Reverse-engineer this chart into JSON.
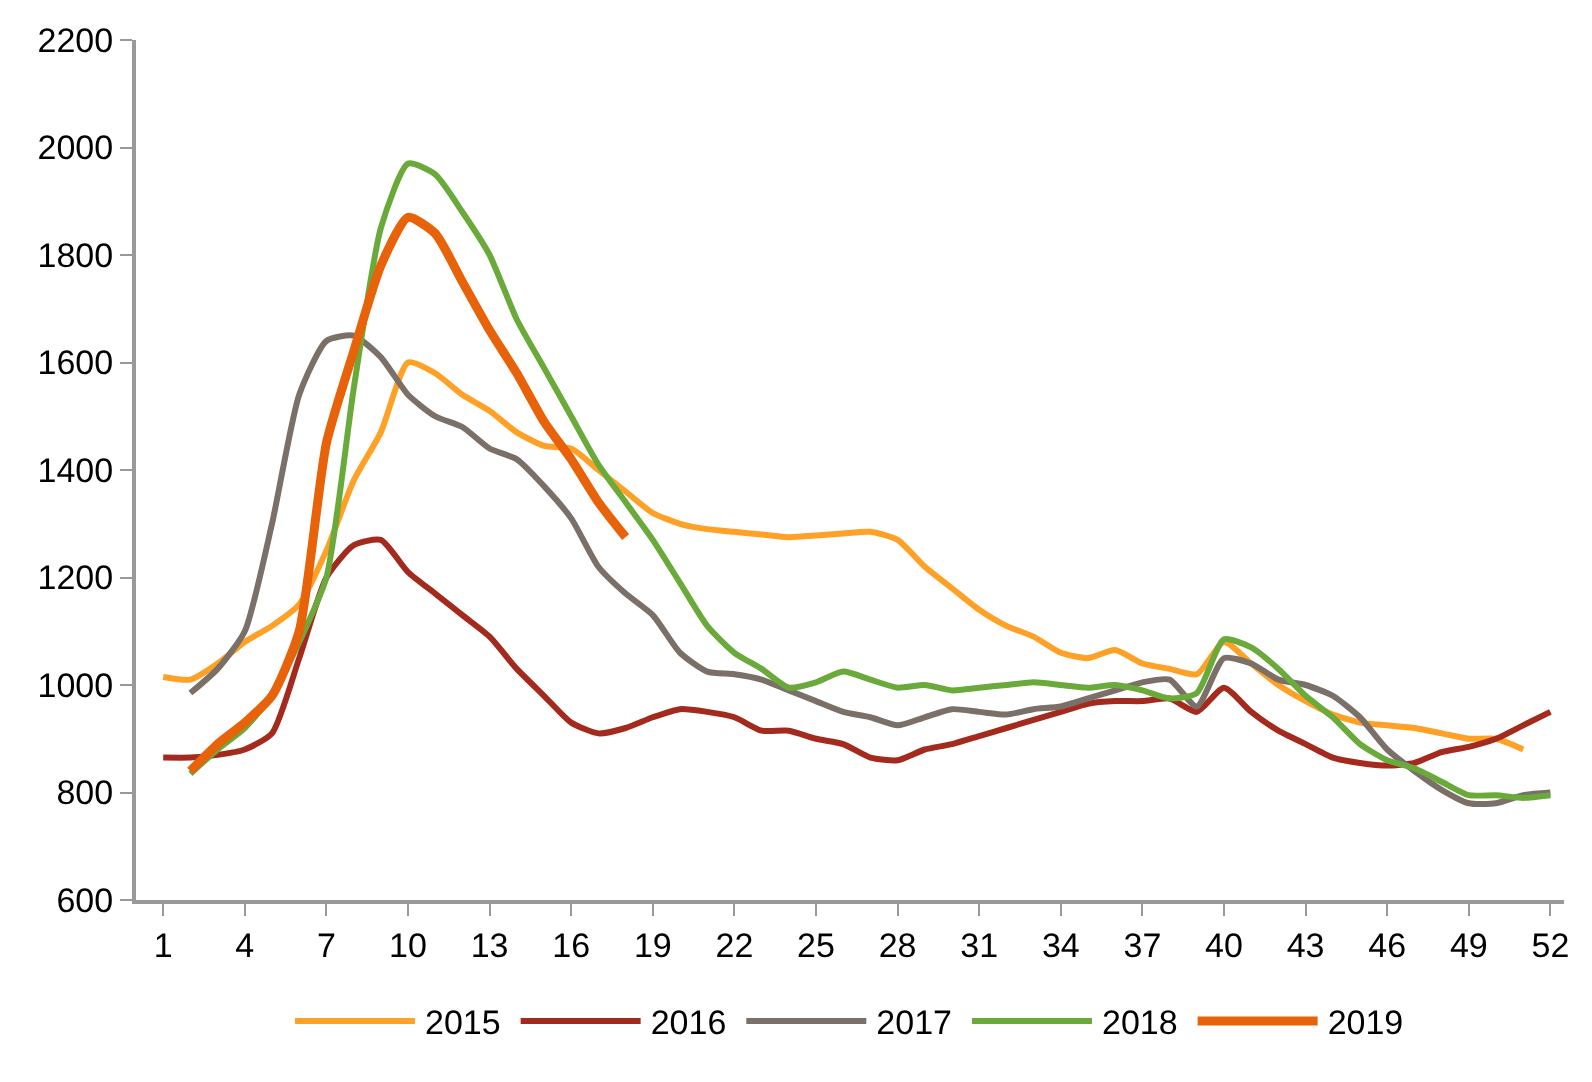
{
  "chart_data": {
    "type": "line",
    "x": [
      1,
      2,
      3,
      4,
      5,
      6,
      7,
      8,
      9,
      10,
      11,
      12,
      13,
      14,
      15,
      16,
      17,
      18,
      19,
      20,
      21,
      22,
      23,
      24,
      25,
      26,
      27,
      28,
      29,
      30,
      31,
      32,
      33,
      34,
      35,
      36,
      37,
      38,
      39,
      40,
      41,
      42,
      43,
      44,
      45,
      46,
      47,
      48,
      49,
      50,
      51,
      52
    ],
    "series": [
      {
        "name": "2015",
        "color": "#ffa126",
        "values": [
          1015,
          1010,
          1040,
          1080,
          1110,
          1150,
          1250,
          1380,
          1470,
          1600,
          1580,
          1540,
          1510,
          1470,
          1445,
          1440,
          1400,
          1360,
          1320,
          1300,
          1290,
          1285,
          1280,
          1275,
          1278,
          1282,
          1285,
          1270,
          1220,
          1180,
          1140,
          1110,
          1090,
          1060,
          1050,
          1065,
          1040,
          1030,
          1020,
          1080,
          1040,
          1000,
          970,
          945,
          930,
          925,
          920,
          910,
          900,
          900,
          880,
          null
        ]
      },
      {
        "name": "2016",
        "color": "#a52a1e",
        "values": [
          865,
          865,
          870,
          880,
          910,
          1050,
          1200,
          1260,
          1270,
          1210,
          1170,
          1130,
          1090,
          1030,
          980,
          930,
          910,
          920,
          940,
          955,
          950,
          940,
          915,
          915,
          900,
          890,
          865,
          860,
          880,
          890,
          905,
          920,
          935,
          950,
          965,
          970,
          970,
          975,
          950,
          995,
          950,
          915,
          890,
          865,
          855,
          850,
          855,
          875,
          885,
          900,
          925,
          950
        ]
      },
      {
        "name": "2017",
        "color": "#7a7067",
        "values": [
          null,
          985,
          1030,
          1100,
          1300,
          1540,
          1640,
          1650,
          1610,
          1540,
          1500,
          1480,
          1440,
          1420,
          1370,
          1310,
          1220,
          1170,
          1130,
          1060,
          1025,
          1020,
          1010,
          990,
          970,
          950,
          940,
          925,
          940,
          955,
          950,
          945,
          955,
          960,
          975,
          990,
          1005,
          1010,
          960,
          1050,
          1040,
          1010,
          1000,
          980,
          940,
          880,
          840,
          805,
          780,
          780,
          795,
          800
        ]
      },
      {
        "name": "2018",
        "color": "#6aaa3a",
        "values": [
          null,
          835,
          880,
          920,
          980,
          1080,
          1200,
          1550,
          1850,
          1970,
          1950,
          1880,
          1800,
          1680,
          1590,
          1500,
          1410,
          1340,
          1270,
          1190,
          1110,
          1060,
          1030,
          995,
          1005,
          1025,
          1010,
          995,
          1000,
          990,
          995,
          1000,
          1005,
          1000,
          995,
          1000,
          990,
          975,
          985,
          1085,
          1070,
          1030,
          980,
          940,
          890,
          860,
          845,
          820,
          795,
          795,
          790,
          795
        ]
      },
      {
        "name": "2019",
        "color": "#e8620a",
        "values": [
          null,
          840,
          890,
          930,
          980,
          1100,
          1450,
          1620,
          1780,
          1870,
          1840,
          1750,
          1660,
          1580,
          1490,
          1420,
          1340,
          1275,
          null,
          null,
          null,
          null,
          null,
          null,
          null,
          null,
          null,
          null,
          null,
          null,
          null,
          null,
          null,
          null,
          null,
          null,
          null,
          null,
          null,
          null,
          null,
          null,
          null,
          null,
          null,
          null,
          null,
          null,
          null,
          null,
          null,
          null
        ]
      }
    ],
    "xlim": [
      0,
      52.5
    ],
    "xticks": [
      1,
      4,
      7,
      10,
      13,
      16,
      19,
      22,
      25,
      28,
      31,
      34,
      37,
      40,
      43,
      46,
      49,
      52
    ],
    "ylim": [
      600,
      2200
    ],
    "yticks": [
      600,
      800,
      1000,
      1200,
      1400,
      1600,
      1800,
      2000,
      2200
    ],
    "grid": false,
    "legend": "bottom",
    "line_style": "solid",
    "marker": "none"
  }
}
